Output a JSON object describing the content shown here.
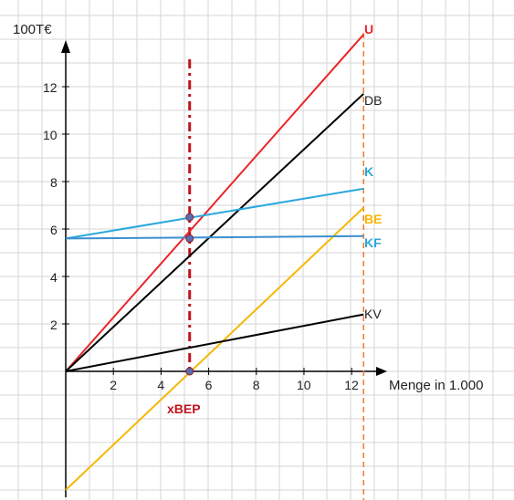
{
  "chart_data": {
    "type": "line",
    "ylabel": "100T€",
    "xlabel": "Menge in 1.000",
    "xlim": [
      0,
      12.5
    ],
    "ylim": [
      -5,
      14
    ],
    "grid": true,
    "x_ticks": [
      2,
      4,
      6,
      8,
      10,
      12
    ],
    "x_tick_labels": [
      "2",
      "4",
      "6",
      "8",
      "10",
      "12"
    ],
    "y_ticks": [
      2,
      4,
      6,
      8,
      10,
      12
    ],
    "y_tick_labels": [
      "2",
      "4",
      "6",
      "8",
      "10",
      "12"
    ],
    "series": [
      {
        "name": "U",
        "color": "#e8262a",
        "x": [
          0,
          12.5
        ],
        "y": [
          0,
          14.2
        ]
      },
      {
        "name": "DB",
        "color": "#000000",
        "x": [
          0,
          12.5
        ],
        "y": [
          0,
          11.7
        ]
      },
      {
        "name": "K",
        "color": "#2aa8dc",
        "x": [
          0,
          12.5
        ],
        "y": [
          5.6,
          7.7
        ]
      },
      {
        "name": "BE",
        "color": "#f5b800",
        "x": [
          0,
          12.5
        ],
        "y": [
          -5,
          6.9
        ]
      },
      {
        "name": "KF",
        "color": "#3a8fd0",
        "x": [
          0,
          12.5
        ],
        "y": [
          5.6,
          5.7
        ]
      },
      {
        "name": "KV",
        "color": "#000000",
        "x": [
          0,
          12.5
        ],
        "y": [
          0,
          2.4
        ]
      }
    ],
    "break_even": {
      "label": "xBEP",
      "x": 5.2,
      "color": "#c0141c"
    },
    "capacity_line": {
      "x": 12.5,
      "color": "#f07a2a"
    },
    "points": [
      {
        "x": 5.2,
        "y": 6.5
      },
      {
        "x": 5.2,
        "y": 5.6
      },
      {
        "x": 5.2,
        "y": 0
      }
    ]
  }
}
